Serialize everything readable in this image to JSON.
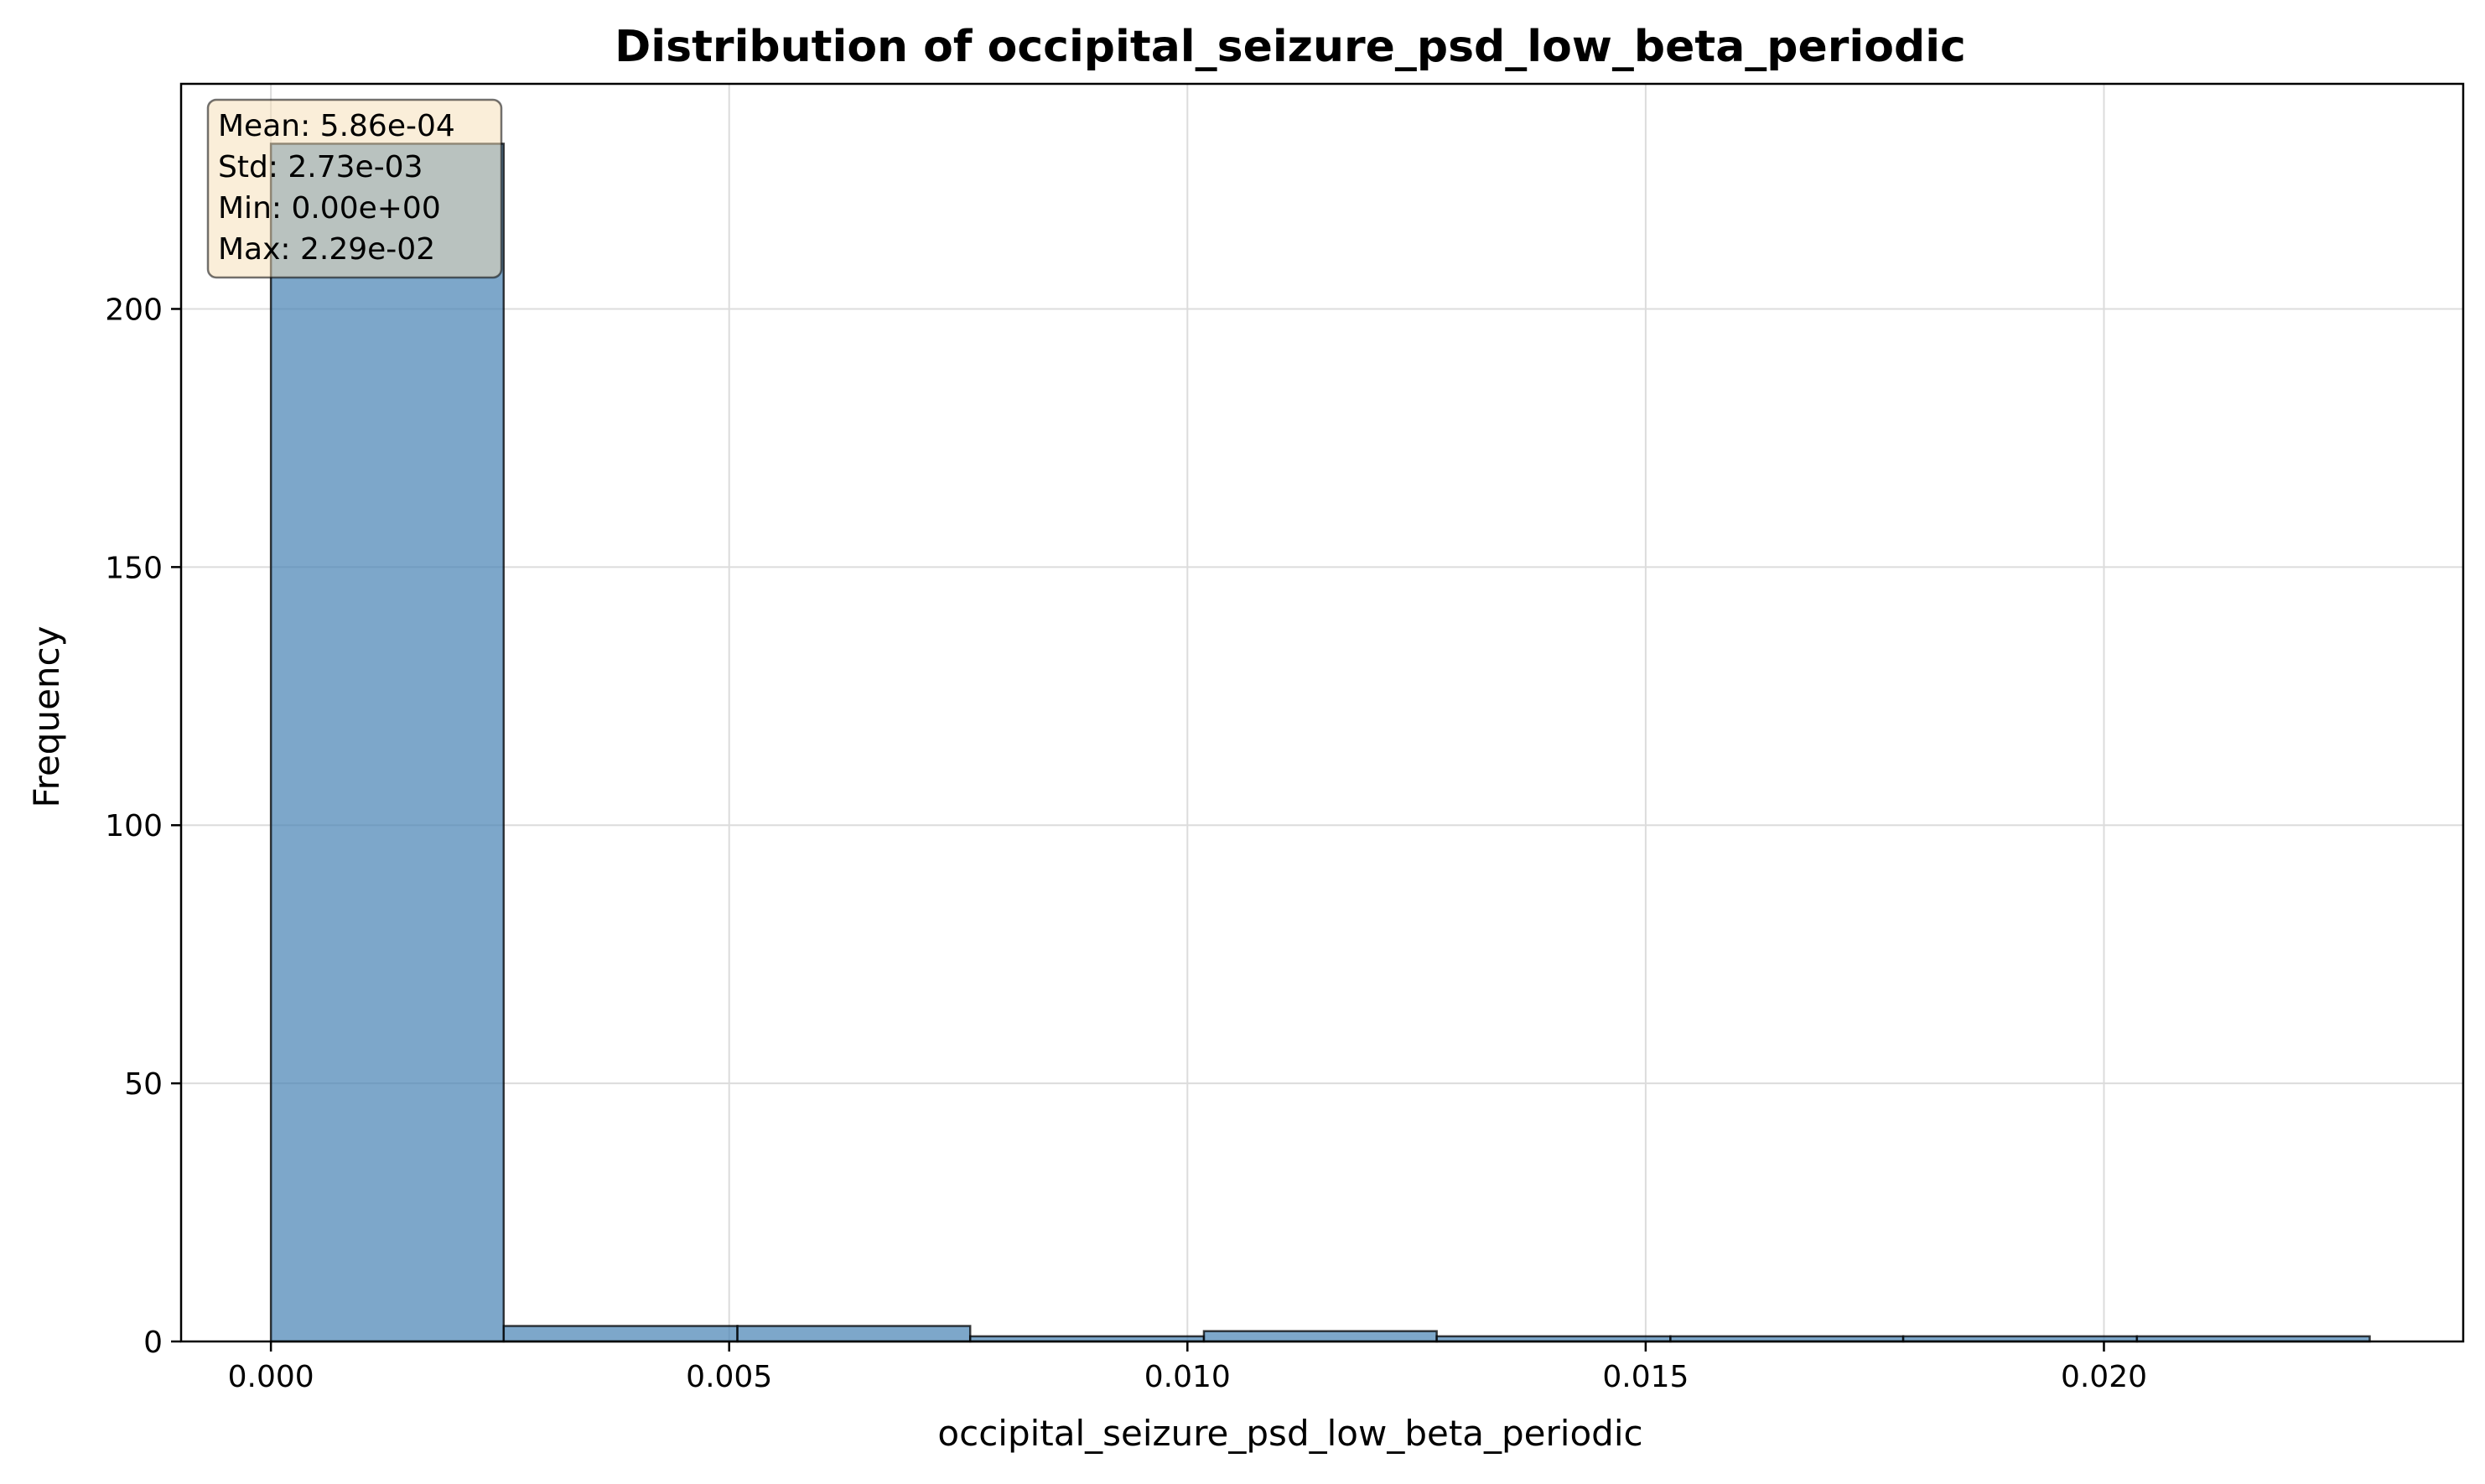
{
  "chart_data": {
    "type": "bar",
    "subtype": "histogram",
    "title": "Distribution of occipital_seizure_psd_low_beta_periodic",
    "xlabel": "occipital_seizure_psd_low_beta_periodic",
    "ylabel": "Frequency",
    "xlim": [
      -0.00098,
      0.02392
    ],
    "ylim": [
      0,
      243.6
    ],
    "x_ticks": [
      0.0,
      0.005,
      0.01,
      0.015,
      0.02
    ],
    "x_tick_labels": [
      "0.000",
      "0.005",
      "0.010",
      "0.015",
      "0.020"
    ],
    "y_ticks": [
      0,
      50,
      100,
      150,
      200
    ],
    "y_tick_labels": [
      "0",
      "50",
      "100",
      "150",
      "200"
    ],
    "grid": true,
    "bar_color": "#4682b4",
    "bar_edge_color": "#000000",
    "bins": [
      {
        "x0": 0.0,
        "x1": 0.00254,
        "count": 232
      },
      {
        "x0": 0.00254,
        "x1": 0.00509,
        "count": 3
      },
      {
        "x0": 0.00509,
        "x1": 0.00763,
        "count": 3
      },
      {
        "x0": 0.00763,
        "x1": 0.01018,
        "count": 1
      },
      {
        "x0": 0.01018,
        "x1": 0.01272,
        "count": 2
      },
      {
        "x0": 0.01272,
        "x1": 0.01527,
        "count": 1
      },
      {
        "x0": 0.01527,
        "x1": 0.01781,
        "count": 1
      },
      {
        "x0": 0.01781,
        "x1": 0.02036,
        "count": 1
      },
      {
        "x0": 0.02036,
        "x1": 0.0229,
        "count": 1
      }
    ],
    "stats_box": {
      "lines": [
        "Mean: 5.86e-04",
        "Std: 2.73e-03",
        "Min: 0.00e+00",
        "Max: 2.29e-02"
      ],
      "placement": "top-left",
      "background": "#f5deb3"
    }
  }
}
